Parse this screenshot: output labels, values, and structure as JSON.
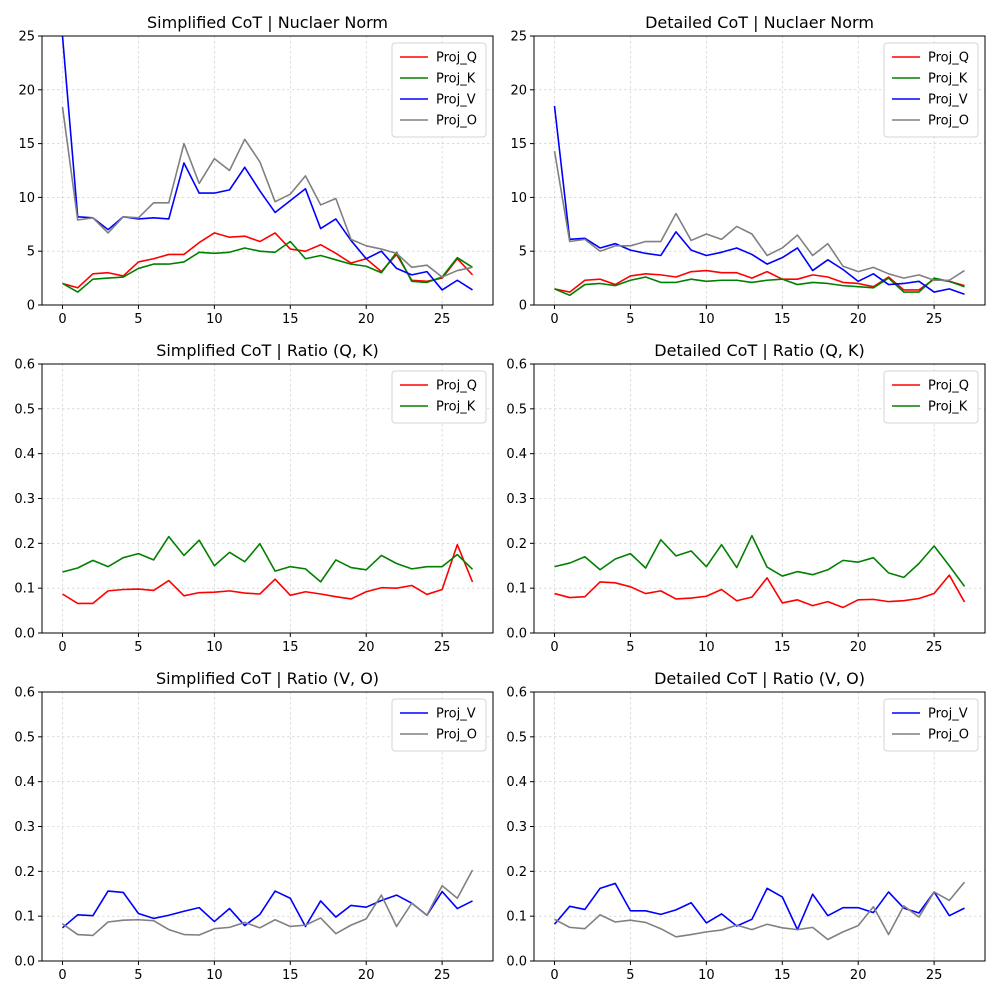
{
  "chart_data": [
    {
      "type": "line",
      "title": "Simplified CoT | Nuclaer Norm",
      "xlim": [
        -1.35,
        28.35
      ],
      "ylim": [
        0,
        25
      ],
      "xticks": [
        0,
        5,
        10,
        15,
        20,
        25
      ],
      "yticks": [
        0,
        5,
        10,
        15,
        20,
        25
      ],
      "legend_loc": "top-right",
      "x": [
        0,
        1,
        2,
        3,
        4,
        5,
        6,
        7,
        8,
        9,
        10,
        11,
        12,
        13,
        14,
        15,
        16,
        17,
        18,
        19,
        20,
        21,
        22,
        23,
        24,
        25,
        26,
        27
      ],
      "series": [
        {
          "name": "Proj_Q",
          "color": "#ff0000",
          "values": [
            2.0,
            1.6,
            2.9,
            3.0,
            2.7,
            4.0,
            4.3,
            4.7,
            4.7,
            5.8,
            6.7,
            6.3,
            6.4,
            5.9,
            6.7,
            5.2,
            5.0,
            5.6,
            4.8,
            3.9,
            4.3,
            3.1,
            4.7,
            2.3,
            2.2,
            2.5,
            4.3,
            2.8
          ]
        },
        {
          "name": "Proj_K",
          "color": "#008000",
          "values": [
            2.0,
            1.2,
            2.4,
            2.5,
            2.6,
            3.4,
            3.8,
            3.8,
            4.0,
            4.9,
            4.8,
            4.9,
            5.3,
            5.0,
            4.9,
            5.9,
            4.3,
            4.6,
            4.2,
            3.8,
            3.6,
            3.0,
            4.9,
            2.2,
            2.1,
            2.6,
            4.4,
            3.5
          ]
        },
        {
          "name": "Proj_V",
          "color": "#0000ff",
          "values": [
            25.0,
            8.2,
            8.1,
            7.0,
            8.2,
            8.0,
            8.1,
            8.0,
            13.2,
            10.4,
            10.4,
            10.7,
            12.8,
            10.6,
            8.6,
            9.7,
            10.8,
            7.1,
            8.0,
            6.0,
            4.3,
            5.0,
            3.4,
            2.8,
            3.1,
            1.4,
            2.3,
            1.4
          ]
        },
        {
          "name": "Proj_O",
          "color": "#808080",
          "values": [
            18.4,
            7.9,
            8.1,
            6.7,
            8.2,
            8.1,
            9.5,
            9.5,
            15.0,
            11.3,
            13.6,
            12.5,
            15.4,
            13.3,
            9.6,
            10.3,
            12.0,
            9.3,
            9.9,
            6.1,
            5.5,
            5.2,
            4.8,
            3.5,
            3.7,
            2.6,
            3.2,
            3.5
          ]
        }
      ]
    },
    {
      "type": "line",
      "title": "Detailed CoT | Nuclaer Norm",
      "xlim": [
        -1.35,
        28.35
      ],
      "ylim": [
        0,
        25
      ],
      "xticks": [
        0,
        5,
        10,
        15,
        20,
        25
      ],
      "yticks": [
        0,
        5,
        10,
        15,
        20,
        25
      ],
      "legend_loc": "top-right",
      "x": [
        0,
        1,
        2,
        3,
        4,
        5,
        6,
        7,
        8,
        9,
        10,
        11,
        12,
        13,
        14,
        15,
        16,
        17,
        18,
        19,
        20,
        21,
        22,
        23,
        24,
        25,
        26,
        27
      ],
      "series": [
        {
          "name": "Proj_Q",
          "color": "#ff0000",
          "values": [
            1.5,
            1.2,
            2.3,
            2.4,
            1.9,
            2.7,
            2.9,
            2.8,
            2.6,
            3.1,
            3.2,
            3.0,
            3.0,
            2.5,
            3.1,
            2.4,
            2.4,
            2.8,
            2.6,
            2.1,
            2.0,
            1.7,
            2.6,
            1.4,
            1.4,
            2.4,
            2.2,
            1.8
          ]
        },
        {
          "name": "Proj_K",
          "color": "#008000",
          "values": [
            1.5,
            0.9,
            1.9,
            2.0,
            1.8,
            2.3,
            2.6,
            2.1,
            2.1,
            2.4,
            2.2,
            2.3,
            2.3,
            2.1,
            2.3,
            2.4,
            1.9,
            2.1,
            2.0,
            1.8,
            1.7,
            1.6,
            2.5,
            1.2,
            1.2,
            2.5,
            2.2,
            1.7
          ]
        },
        {
          "name": "Proj_V",
          "color": "#0000ff",
          "values": [
            18.5,
            6.1,
            6.2,
            5.3,
            5.7,
            5.1,
            4.8,
            4.6,
            6.8,
            5.1,
            4.6,
            4.9,
            5.3,
            4.7,
            3.8,
            4.4,
            5.3,
            3.2,
            4.2,
            3.3,
            2.2,
            2.9,
            1.9,
            2.0,
            2.2,
            1.2,
            1.5,
            1.0
          ]
        },
        {
          "name": "Proj_O",
          "color": "#808080",
          "values": [
            14.3,
            5.9,
            6.1,
            5.0,
            5.5,
            5.5,
            5.9,
            5.9,
            8.5,
            6.0,
            6.6,
            6.1,
            7.3,
            6.6,
            4.6,
            5.3,
            6.5,
            4.6,
            5.7,
            3.6,
            3.1,
            3.5,
            2.9,
            2.5,
            2.8,
            2.3,
            2.3,
            3.2
          ]
        }
      ]
    },
    {
      "type": "line",
      "title": "Simplified CoT | Ratio (Q, K)",
      "xlim": [
        -1.35,
        28.35
      ],
      "ylim": [
        0,
        0.6
      ],
      "xticks": [
        0,
        5,
        10,
        15,
        20,
        25
      ],
      "yticks": [
        0.0,
        0.1,
        0.2,
        0.3,
        0.4,
        0.5,
        0.6
      ],
      "legend_loc": "top-right",
      "x": [
        0,
        1,
        2,
        3,
        4,
        5,
        6,
        7,
        8,
        9,
        10,
        11,
        12,
        13,
        14,
        15,
        16,
        17,
        18,
        19,
        20,
        21,
        22,
        23,
        24,
        25,
        26,
        27
      ],
      "series": [
        {
          "name": "Proj_Q",
          "color": "#ff0000",
          "values": [
            0.087,
            0.066,
            0.066,
            0.094,
            0.097,
            0.098,
            0.095,
            0.117,
            0.083,
            0.09,
            0.091,
            0.094,
            0.089,
            0.087,
            0.12,
            0.084,
            0.092,
            0.087,
            0.081,
            0.076,
            0.092,
            0.101,
            0.1,
            0.106,
            0.086,
            0.097,
            0.197,
            0.114
          ]
        },
        {
          "name": "Proj_K",
          "color": "#008000",
          "values": [
            0.136,
            0.145,
            0.162,
            0.148,
            0.168,
            0.177,
            0.163,
            0.215,
            0.173,
            0.207,
            0.15,
            0.18,
            0.159,
            0.199,
            0.138,
            0.148,
            0.143,
            0.114,
            0.163,
            0.146,
            0.141,
            0.173,
            0.155,
            0.143,
            0.148,
            0.148,
            0.175,
            0.142
          ]
        }
      ]
    },
    {
      "type": "line",
      "title": "Detailed CoT | Ratio (Q, K)",
      "xlim": [
        -1.35,
        28.35
      ],
      "ylim": [
        0,
        0.6
      ],
      "xticks": [
        0,
        5,
        10,
        15,
        20,
        25
      ],
      "yticks": [
        0.0,
        0.1,
        0.2,
        0.3,
        0.4,
        0.5,
        0.6
      ],
      "legend_loc": "top-right",
      "x": [
        0,
        1,
        2,
        3,
        4,
        5,
        6,
        7,
        8,
        9,
        10,
        11,
        12,
        13,
        14,
        15,
        16,
        17,
        18,
        19,
        20,
        21,
        22,
        23,
        24,
        25,
        26,
        27
      ],
      "series": [
        {
          "name": "Proj_Q",
          "color": "#ff0000",
          "values": [
            0.088,
            0.079,
            0.081,
            0.114,
            0.112,
            0.103,
            0.088,
            0.094,
            0.076,
            0.078,
            0.082,
            0.097,
            0.072,
            0.08,
            0.123,
            0.067,
            0.074,
            0.061,
            0.07,
            0.057,
            0.074,
            0.075,
            0.07,
            0.072,
            0.077,
            0.088,
            0.129,
            0.069
          ]
        },
        {
          "name": "Proj_K",
          "color": "#008000",
          "values": [
            0.148,
            0.156,
            0.17,
            0.141,
            0.165,
            0.177,
            0.145,
            0.208,
            0.172,
            0.183,
            0.148,
            0.197,
            0.146,
            0.217,
            0.147,
            0.127,
            0.137,
            0.13,
            0.141,
            0.162,
            0.158,
            0.168,
            0.134,
            0.124,
            0.155,
            0.194,
            0.15,
            0.104
          ]
        }
      ]
    },
    {
      "type": "line",
      "title": "Simplified CoT | Ratio (V, O)",
      "xlim": [
        -1.35,
        28.35
      ],
      "ylim": [
        0,
        0.6
      ],
      "xticks": [
        0,
        5,
        10,
        15,
        20,
        25
      ],
      "yticks": [
        0.0,
        0.1,
        0.2,
        0.3,
        0.4,
        0.5,
        0.6
      ],
      "legend_loc": "top-right",
      "x": [
        0,
        1,
        2,
        3,
        4,
        5,
        6,
        7,
        8,
        9,
        10,
        11,
        12,
        13,
        14,
        15,
        16,
        17,
        18,
        19,
        20,
        21,
        22,
        23,
        24,
        25,
        26,
        27
      ],
      "series": [
        {
          "name": "Proj_V",
          "color": "#0000ff",
          "values": [
            0.074,
            0.103,
            0.101,
            0.156,
            0.153,
            0.106,
            0.095,
            0.102,
            0.111,
            0.119,
            0.088,
            0.117,
            0.079,
            0.104,
            0.156,
            0.14,
            0.077,
            0.134,
            0.098,
            0.124,
            0.12,
            0.135,
            0.147,
            0.129,
            0.102,
            0.155,
            0.117,
            0.134
          ]
        },
        {
          "name": "Proj_O",
          "color": "#808080",
          "values": [
            0.083,
            0.059,
            0.057,
            0.087,
            0.091,
            0.092,
            0.09,
            0.07,
            0.059,
            0.058,
            0.072,
            0.075,
            0.086,
            0.074,
            0.092,
            0.077,
            0.08,
            0.096,
            0.061,
            0.08,
            0.094,
            0.147,
            0.077,
            0.129,
            0.102,
            0.168,
            0.14,
            0.203
          ]
        }
      ]
    },
    {
      "type": "line",
      "title": "Detailed CoT | Ratio (V, O)",
      "xlim": [
        -1.35,
        28.35
      ],
      "ylim": [
        0,
        0.6
      ],
      "xticks": [
        0,
        5,
        10,
        15,
        20,
        25
      ],
      "yticks": [
        0.0,
        0.1,
        0.2,
        0.3,
        0.4,
        0.5,
        0.6
      ],
      "legend_loc": "top-right",
      "x": [
        0,
        1,
        2,
        3,
        4,
        5,
        6,
        7,
        8,
        9,
        10,
        11,
        12,
        13,
        14,
        15,
        16,
        17,
        18,
        19,
        20,
        21,
        22,
        23,
        24,
        25,
        26,
        27
      ],
      "series": [
        {
          "name": "Proj_V",
          "color": "#0000ff",
          "values": [
            0.082,
            0.122,
            0.115,
            0.162,
            0.173,
            0.112,
            0.112,
            0.104,
            0.114,
            0.13,
            0.085,
            0.105,
            0.078,
            0.093,
            0.162,
            0.143,
            0.07,
            0.149,
            0.101,
            0.119,
            0.119,
            0.108,
            0.154,
            0.118,
            0.107,
            0.154,
            0.101,
            0.118
          ]
        },
        {
          "name": "Proj_O",
          "color": "#808080",
          "values": [
            0.093,
            0.075,
            0.072,
            0.103,
            0.087,
            0.091,
            0.086,
            0.072,
            0.054,
            0.059,
            0.065,
            0.069,
            0.08,
            0.07,
            0.082,
            0.074,
            0.07,
            0.075,
            0.048,
            0.065,
            0.079,
            0.121,
            0.059,
            0.123,
            0.098,
            0.154,
            0.135,
            0.176
          ]
        }
      ]
    }
  ]
}
